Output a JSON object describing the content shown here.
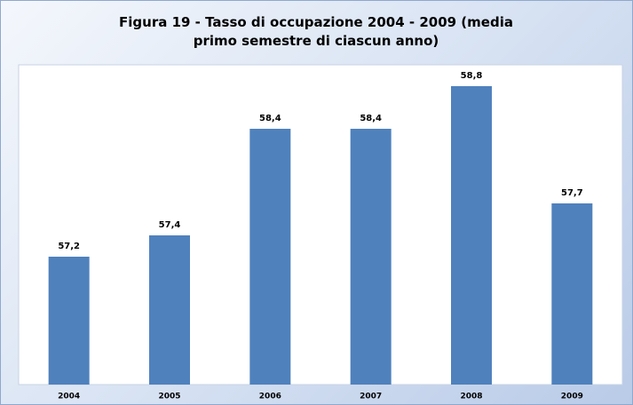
{
  "chart_data": {
    "type": "bar",
    "title": "Figura  19 - Tasso di occupazione 2004 - 2009 (media primo semestre di ciascun anno)",
    "categories": [
      "2004",
      "2005",
      "2006",
      "2007",
      "2008",
      "2009"
    ],
    "values": [
      57.2,
      57.4,
      58.4,
      58.4,
      58.8,
      57.7
    ],
    "value_labels": [
      "57,2",
      "57,4",
      "58,4",
      "58,4",
      "58,8",
      "57,7"
    ],
    "color": "#4f81bd",
    "ylim": [
      56,
      59
    ]
  }
}
